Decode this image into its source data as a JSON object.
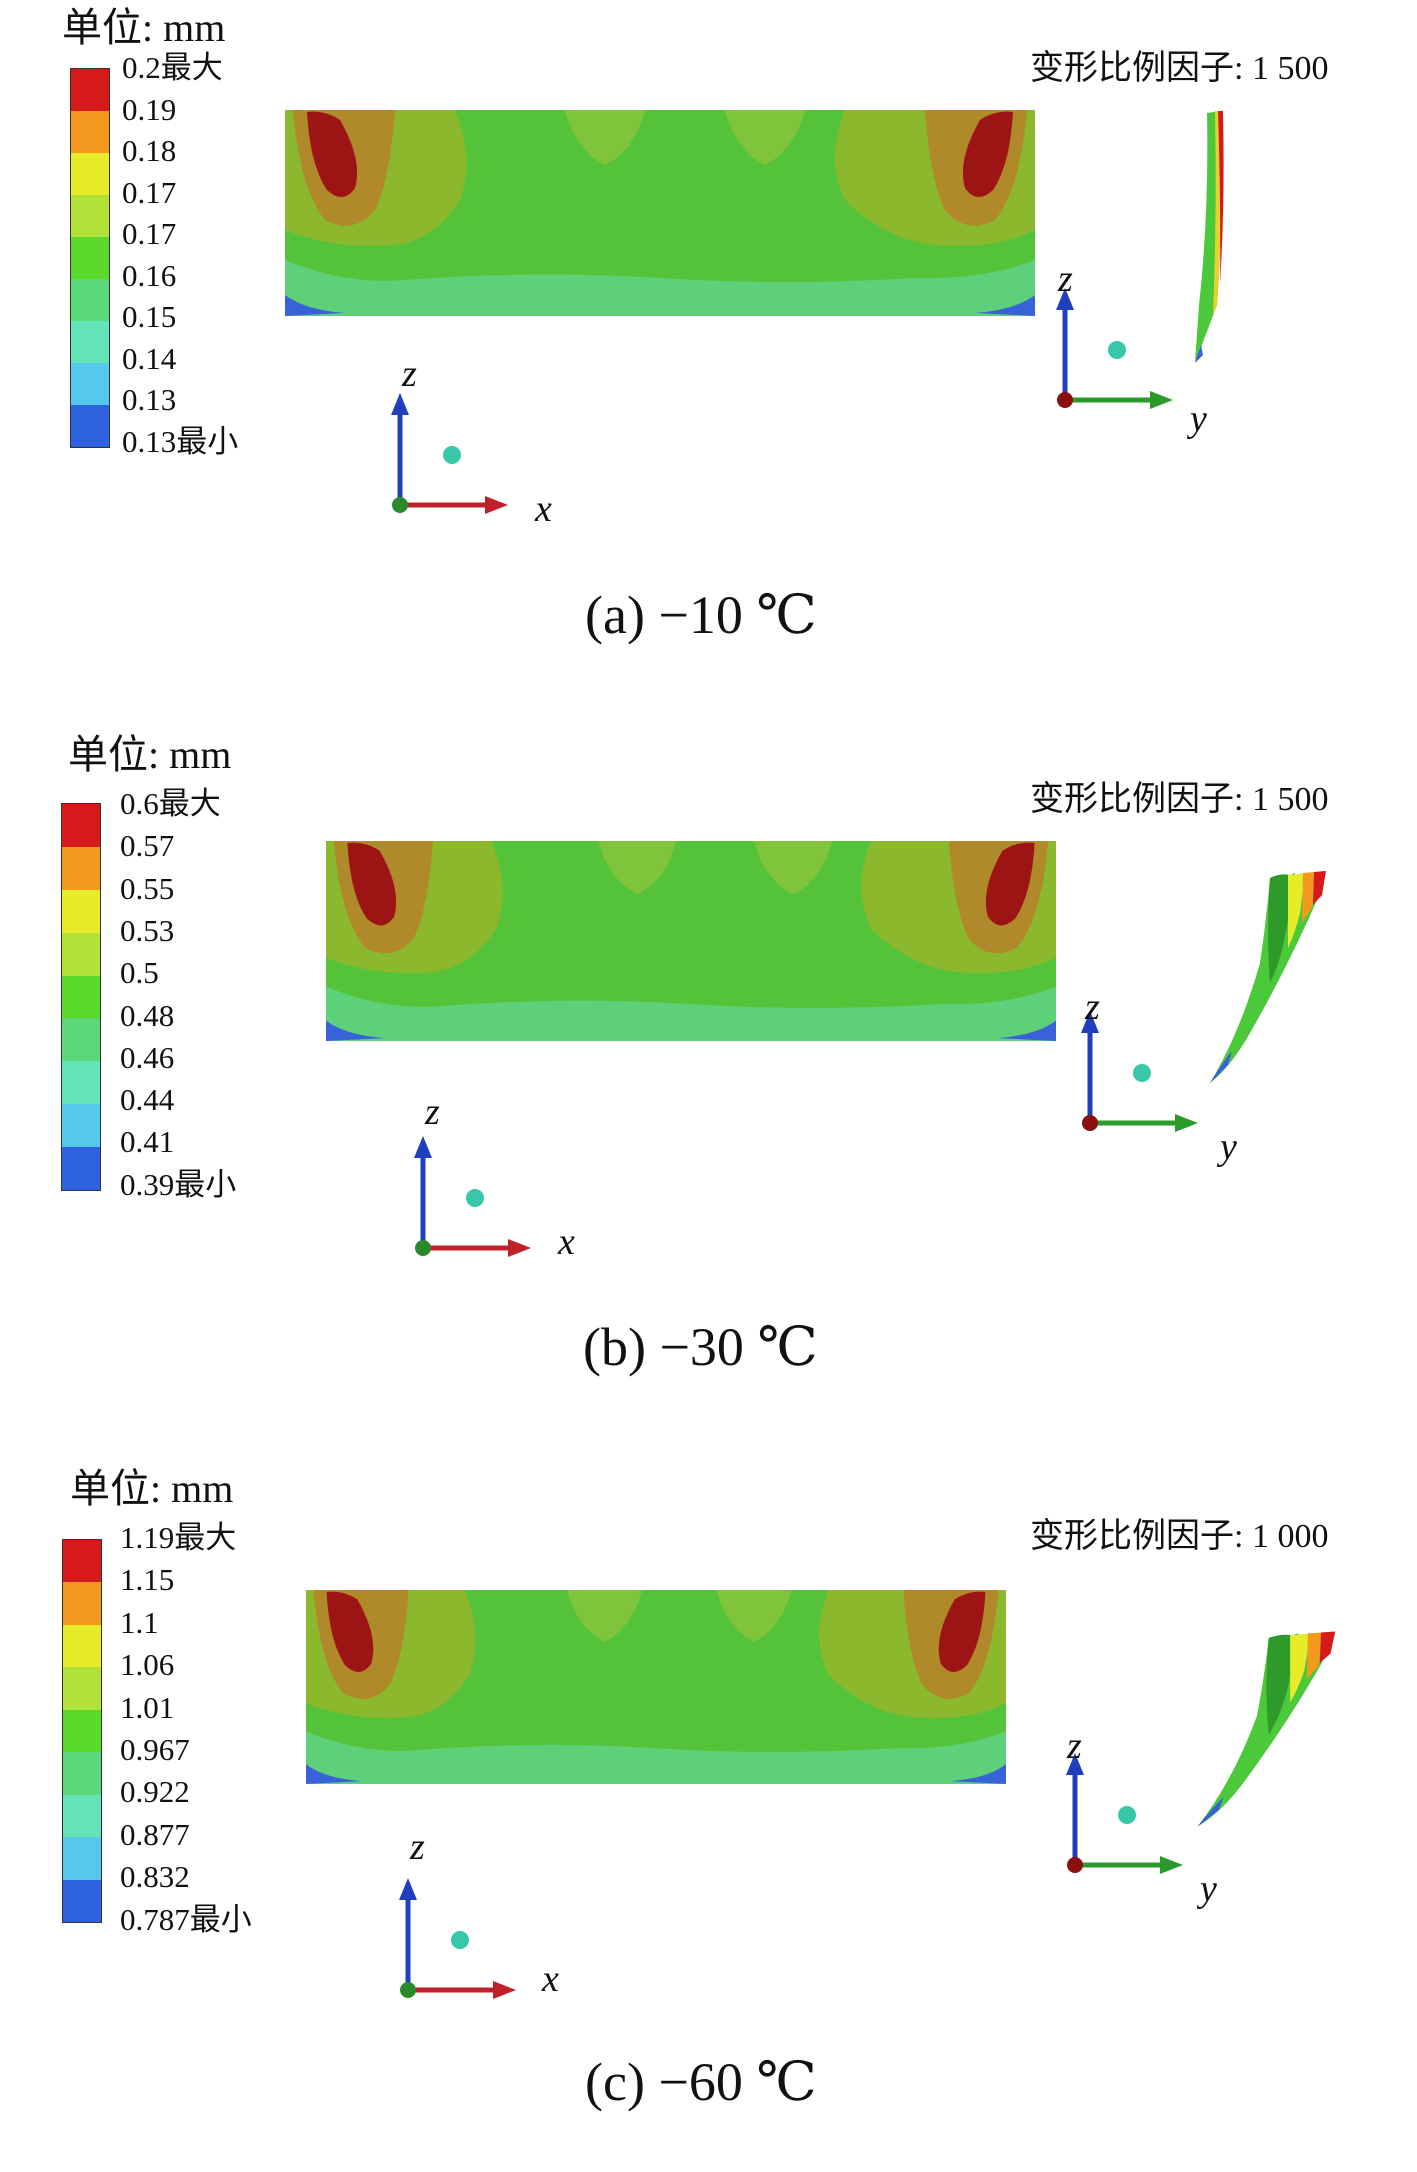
{
  "colors": {
    "legend_scale": [
      "#d61a1a",
      "#f39a1e",
      "#e6ec2a",
      "#b2e238",
      "#5ad82c",
      "#5bd97a",
      "#62e3b8",
      "#55c8ee",
      "#2f62e0"
    ],
    "field_base": "#55c33a",
    "field_mid": "#8bb82d",
    "field_warm": "#b08a2a",
    "field_hot": "#9c1414",
    "field_edge": "#3a62d8"
  },
  "panels": [
    {
      "unit": "单位: mm",
      "legend_labels": [
        "0.2最大",
        "0.19",
        "0.18",
        "0.17",
        "0.17",
        "0.16",
        "0.15",
        "0.14",
        "0.13",
        "0.13最小"
      ],
      "scale_text": "变形比例因子: 1 500",
      "caption": "(a) −10 ℃",
      "axes_front": {
        "vertical": "z",
        "horizontal": "x"
      },
      "axes_side": {
        "vertical": "z",
        "horizontal": "y"
      }
    },
    {
      "unit": "单位: mm",
      "legend_labels": [
        "0.6最大",
        "0.57",
        "0.55",
        "0.53",
        "0.5",
        "0.48",
        "0.46",
        "0.44",
        "0.41",
        "0.39最小"
      ],
      "scale_text": "变形比例因子: 1 500",
      "caption": "(b) −30 ℃",
      "axes_front": {
        "vertical": "z",
        "horizontal": "x"
      },
      "axes_side": {
        "vertical": "z",
        "horizontal": "y"
      }
    },
    {
      "unit": "单位: mm",
      "legend_labels": [
        "1.19最大",
        "1.15",
        "1.1",
        "1.06",
        "1.01",
        "0.967",
        "0.922",
        "0.877",
        "0.832",
        "0.787最小"
      ],
      "scale_text": "变形比例因子: 1 000",
      "caption": "(c) −60 ℃",
      "axes_front": {
        "vertical": "z",
        "horizontal": "x"
      },
      "axes_side": {
        "vertical": "z",
        "horizontal": "y"
      }
    }
  ]
}
